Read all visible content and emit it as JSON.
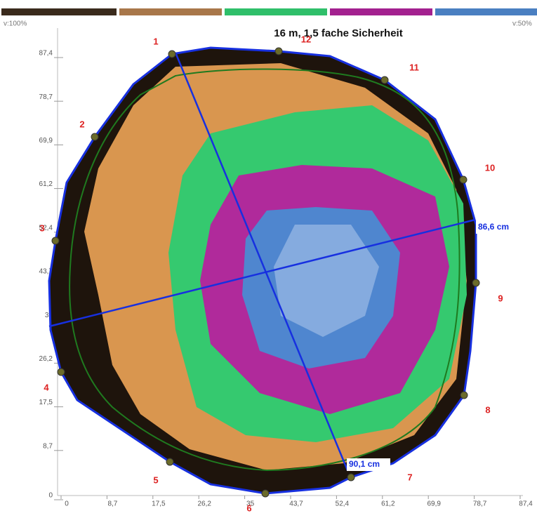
{
  "header": {
    "title": "16 m, 1,5 fache Sicherheit",
    "left_scale": "v:100%",
    "right_scale": "v:50%"
  },
  "axes": {
    "x_ticks": [
      "0",
      "8,7",
      "17,5",
      "26,2",
      "35",
      "43,7",
      "52,4",
      "61,2",
      "69,9",
      "78,7",
      "87,4"
    ],
    "y_ticks": [
      "0",
      "8,7",
      "17,5",
      "26,2",
      "35",
      "43,7",
      "52,4",
      "61,2",
      "69,9",
      "78,7",
      "87,4"
    ]
  },
  "sensors": [
    "1",
    "2",
    "3",
    "4",
    "5",
    "6",
    "7",
    "8",
    "9",
    "10",
    "11",
    "12"
  ],
  "measurements": [
    "86,6 cm",
    "90,1 cm"
  ]
}
